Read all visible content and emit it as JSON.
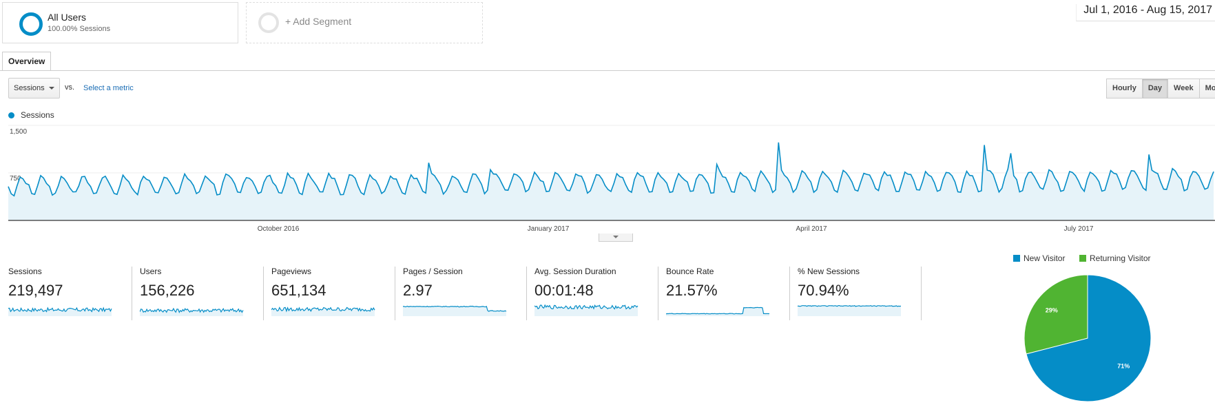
{
  "segments": {
    "all_users": {
      "title": "All Users",
      "subtitle": "100.00% Sessions"
    },
    "add_segment": {
      "label": "+ Add Segment"
    }
  },
  "date_range": "Jul 1, 2016 - Aug 15, 2017",
  "tabs": [
    {
      "label": "Overview",
      "active": true
    }
  ],
  "metric_selector": {
    "selected": "Sessions",
    "vs_label": "vs.",
    "select_metric_link": "Select a metric"
  },
  "granularity": {
    "options": [
      "Hourly",
      "Day",
      "Week",
      "Month"
    ],
    "active": "Day"
  },
  "legend": {
    "label": "Sessions",
    "color": "#058dc7"
  },
  "chart_data": {
    "type": "area",
    "series": [
      {
        "name": "Sessions"
      }
    ],
    "granularity": "Day",
    "x_start": "Jul 1, 2016",
    "x_end": "Aug 15, 2017",
    "x_ticks": [
      "October 2016",
      "January 2017",
      "April 2017",
      "July 2017"
    ],
    "y_ticks": [
      "1,500",
      "750"
    ],
    "ylim": [
      0,
      1500
    ],
    "grid": true,
    "color": "#058dc7",
    "fill": "#e6f3f9",
    "weekly_pattern": true,
    "typical_low": 400,
    "typical_high": 700,
    "peaks": [
      {
        "date": "Nov 21, 2016",
        "value": 910
      },
      {
        "date": "Dec 12, 2016",
        "value": 800
      },
      {
        "date": "Feb 27, 2017",
        "value": 885
      },
      {
        "date": "Mar 20, 2017",
        "value": 1230
      },
      {
        "date": "May 29, 2017",
        "value": 1190
      },
      {
        "date": "Jun 7, 2017",
        "value": 1060
      },
      {
        "date": "Jul 24, 2017",
        "value": 1040
      }
    ]
  },
  "scorecards": [
    {
      "label": "Sessions",
      "value": "219,497",
      "spark_level": 0.45
    },
    {
      "label": "Users",
      "value": "156,226",
      "spark_level": 0.4
    },
    {
      "label": "Pageviews",
      "value": "651,134",
      "spark_level": 0.5
    },
    {
      "label": "Pages / Session",
      "value": "2.97",
      "spark_level": 0.75
    },
    {
      "label": "Avg. Session Duration",
      "value": "00:01:48",
      "spark_level": 0.7
    },
    {
      "label": "Bounce Rate",
      "value": "21.57%",
      "spark_level": 0.1
    },
    {
      "label": "% New Sessions",
      "value": "70.94%",
      "spark_level": 0.8
    }
  ],
  "pie": {
    "legend": [
      {
        "label": "New Visitor",
        "color": "#058dc7"
      },
      {
        "label": "Returning Visitor",
        "color": "#50b432"
      }
    ],
    "slices": [
      {
        "name": "New Visitor",
        "value": 71,
        "label": "71%",
        "color": "#058dc7"
      },
      {
        "name": "Returning Visitor",
        "value": 29,
        "label": "29%",
        "color": "#50b432"
      }
    ]
  }
}
